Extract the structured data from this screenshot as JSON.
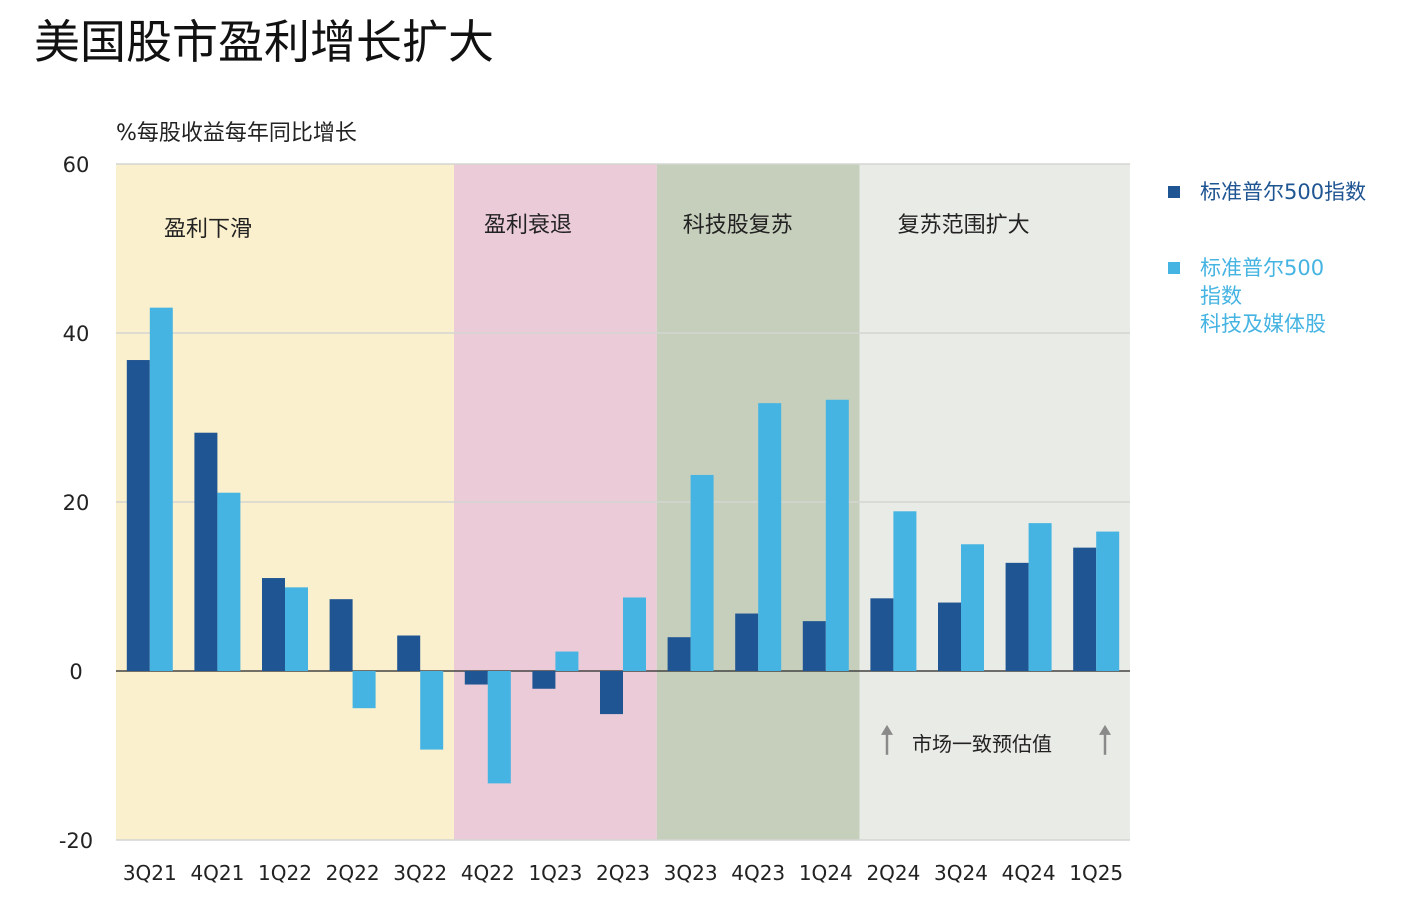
{
  "title": "美国股市盈利增长扩大",
  "chart_data": {
    "type": "bar",
    "ylabel": "%每股收益每年同比增长",
    "ylim": [
      -20,
      60
    ],
    "yticks": [
      60,
      40,
      20,
      0,
      -20
    ],
    "grid": true,
    "categories": [
      "3Q21",
      "4Q21",
      "1Q22",
      "2Q22",
      "3Q22",
      "4Q22",
      "1Q23",
      "2Q23",
      "3Q23",
      "4Q23",
      "1Q24",
      "2Q24",
      "3Q24",
      "4Q24",
      "1Q25"
    ],
    "series": [
      {
        "name": "标准普尔500指数",
        "color": "#1f5592",
        "values": [
          36.8,
          28.2,
          11.0,
          8.5,
          4.2,
          -1.6,
          -2.1,
          -5.1,
          4.0,
          6.8,
          5.9,
          8.6,
          8.1,
          12.8,
          14.6
        ]
      },
      {
        "name": "标准普尔500指数科技及媒体股",
        "color": "#46b4e2",
        "values": [
          43.0,
          21.1,
          9.9,
          -4.4,
          -9.3,
          -13.3,
          2.3,
          8.7,
          23.2,
          31.7,
          32.1,
          18.9,
          15.0,
          17.5,
          16.5
        ]
      }
    ],
    "phases": [
      {
        "label": "盈利下滑",
        "start": 0,
        "end": 4,
        "color": "#fbf0cd"
      },
      {
        "label": "盈利衰退",
        "start": 5,
        "end": 7,
        "color": "#eacbd7"
      },
      {
        "label": "科技股复苏",
        "start": 8,
        "end": 10,
        "color": "#c6cfbc"
      },
      {
        "label": "复苏范围扩大",
        "start": 11,
        "end": 14,
        "color": "#e9ebe6"
      }
    ],
    "annotation": "市场一致预估值"
  },
  "legend": {
    "item1": "标准普尔500指数",
    "item2_lines": [
      "标准普尔500",
      "指数",
      "科技及媒体股"
    ],
    "item1_color": "#1f5592",
    "item2_color": "#46b4e2"
  }
}
